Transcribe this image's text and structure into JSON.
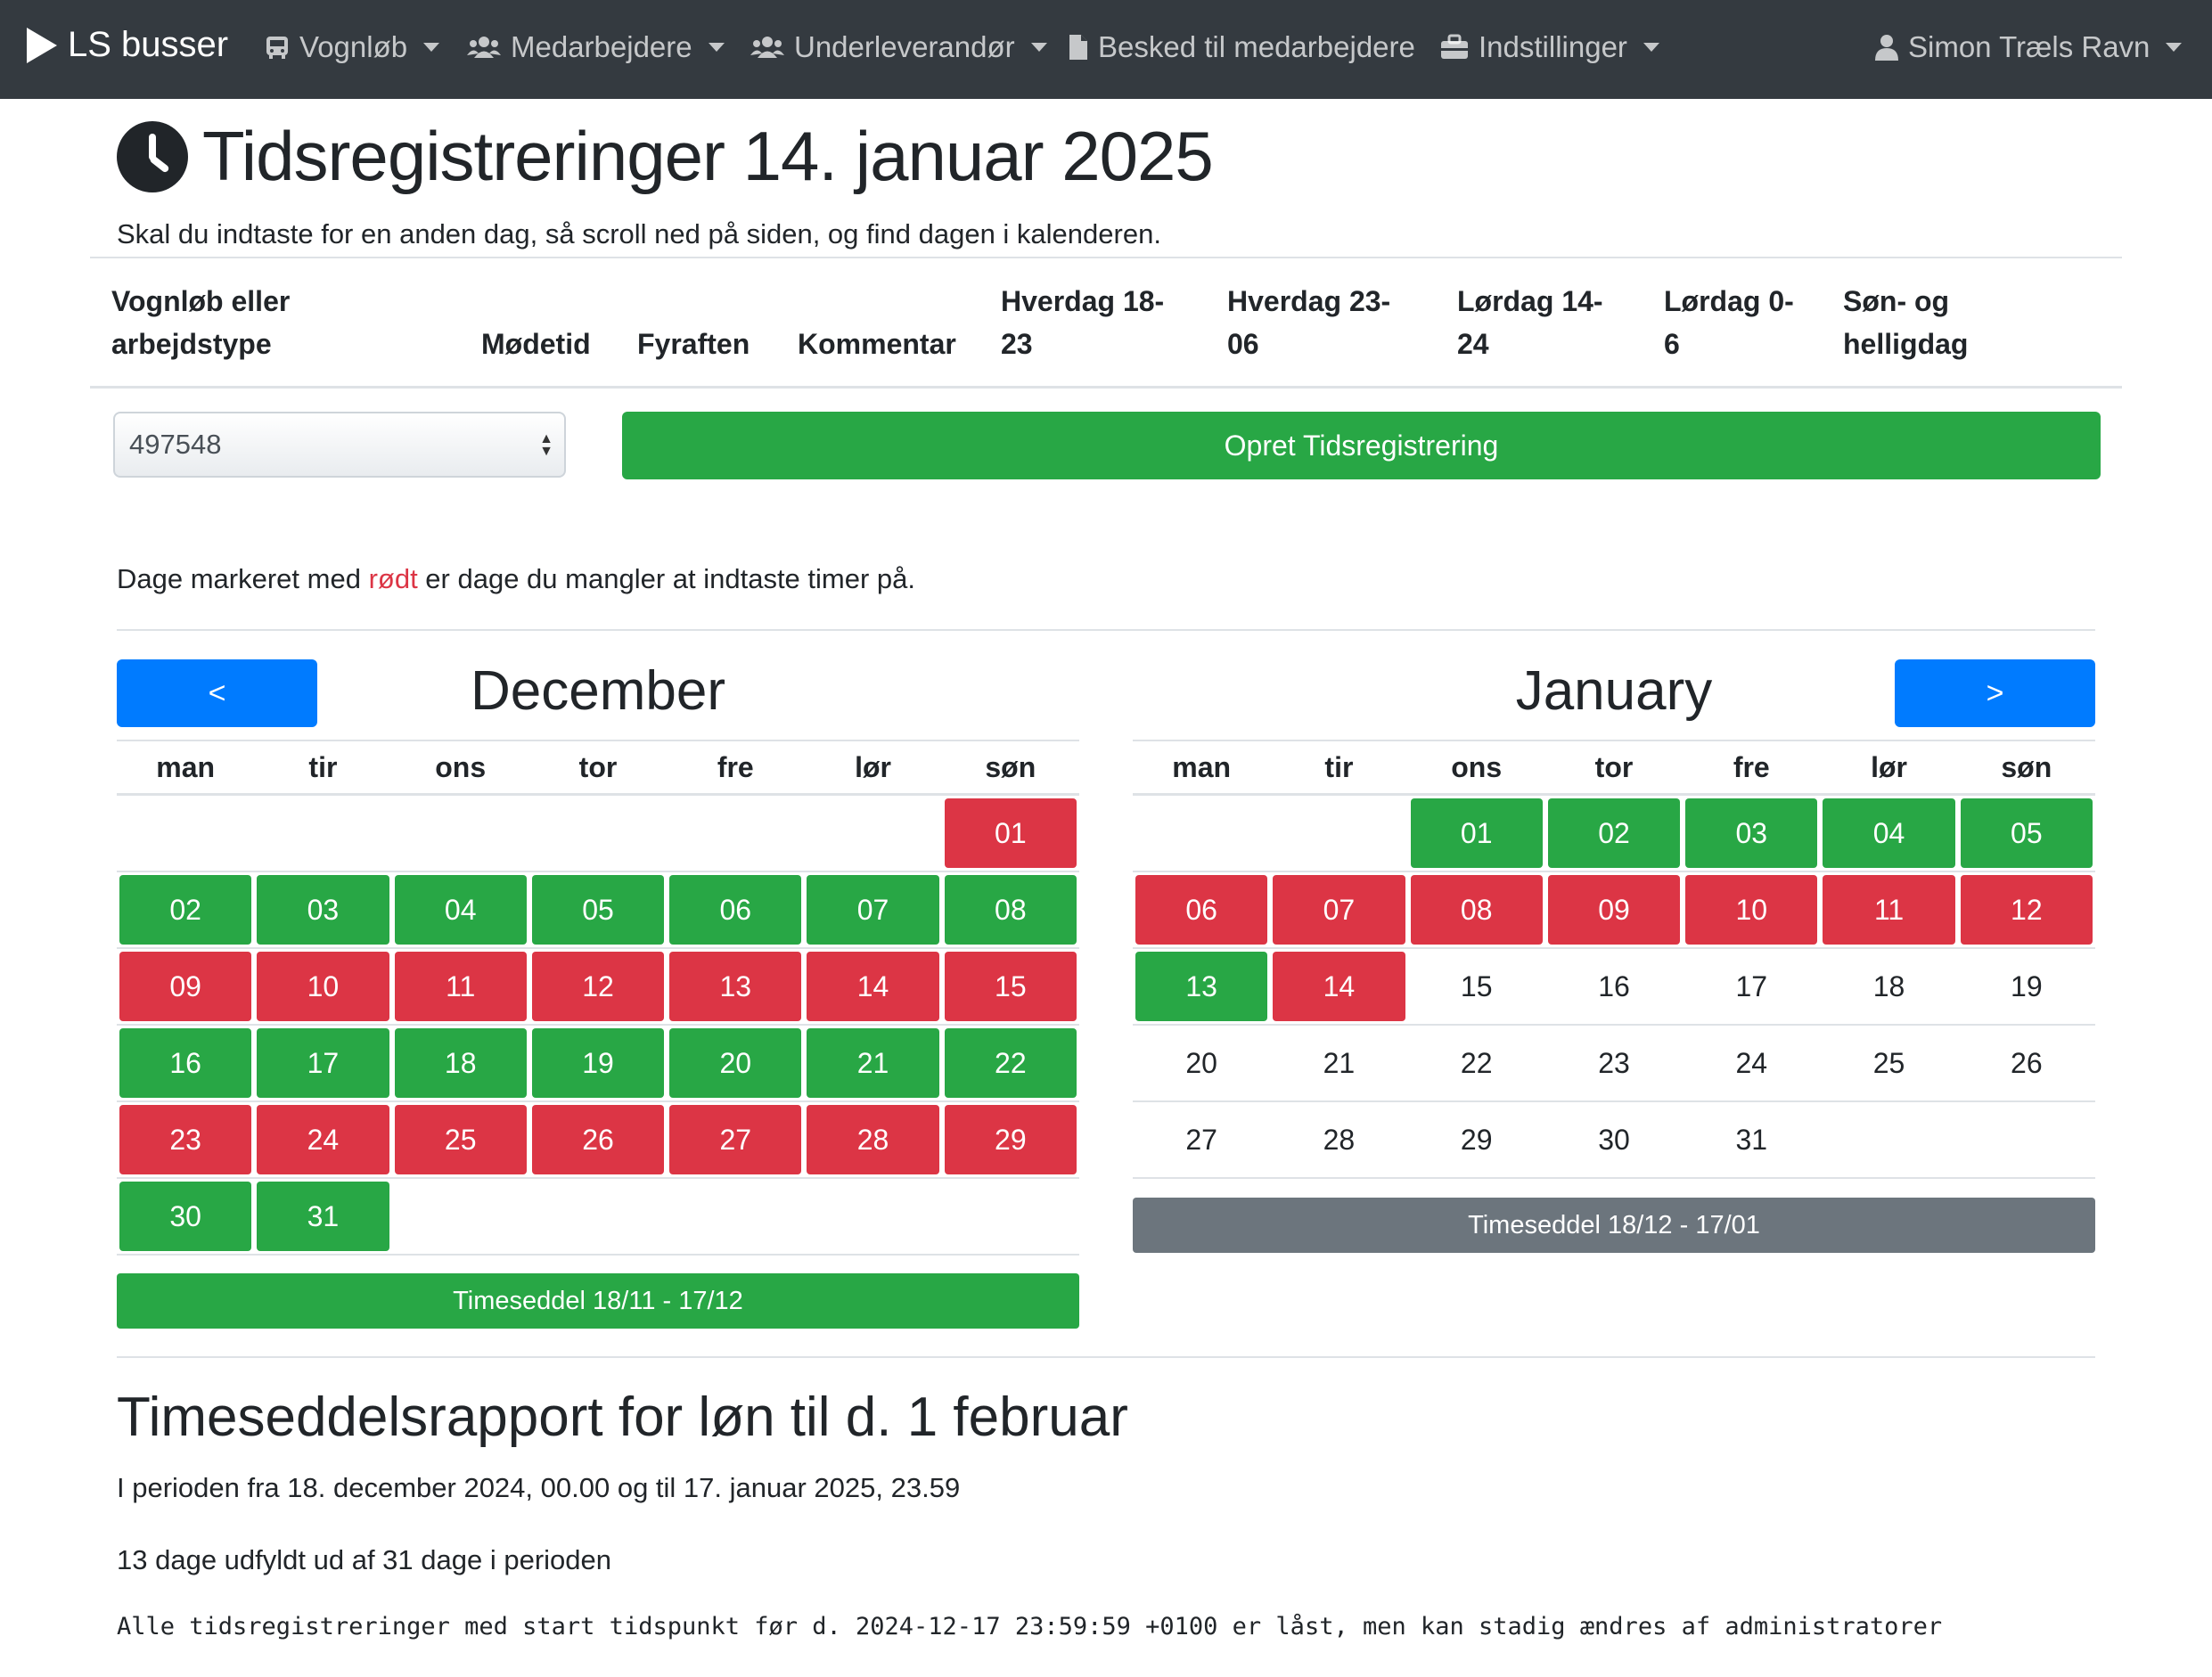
{
  "navbar": {
    "brand": "LS busser",
    "items": [
      {
        "label": "Vognløb",
        "icon": "bus-icon",
        "dropdown": true
      },
      {
        "label": "Medarbejdere",
        "icon": "users-icon",
        "dropdown": true
      },
      {
        "label": "Underleverandør",
        "icon": "users-icon",
        "dropdown": true
      },
      {
        "label": "Besked til medarbejdere",
        "icon": "file-icon",
        "dropdown": false
      },
      {
        "label": "Indstillinger",
        "icon": "toolbox-icon",
        "dropdown": true
      }
    ],
    "user": {
      "label": "Simon Træls Ravn",
      "icon": "user-icon"
    }
  },
  "page": {
    "title": "Tidsregistreringer 14. januar 2025",
    "subtitle": "Skal du indtaste for en anden dag, så scroll ned på siden, og find dagen i kalenderen."
  },
  "table_headers": {
    "vognloeb_line1": "Vognløb eller",
    "vognloeb_line2": "arbejdstype",
    "modetid": "Mødetid",
    "fyraften": "Fyraften",
    "kommentar": "Kommentar",
    "hverdag1_line1": "Hverdag 18-",
    "hverdag1_line2": "23",
    "hverdag2_line1": "Hverdag 23-",
    "hverdag2_line2": "06",
    "lordag1_line1": "Lørdag 14-",
    "lordag1_line2": "24",
    "lordag2_line1": "Lørdag 0-",
    "lordag2_line2": "6",
    "son_line1": "Søn- og",
    "son_line2": "helligdag"
  },
  "form": {
    "select_value": "497548",
    "create_button": "Opret Tidsregistrering"
  },
  "info": {
    "prefix": "Dage markeret med ",
    "red_word": "rødt",
    "suffix": " er dage du mangler at indtaste timer på."
  },
  "calendar": {
    "prev_label": "<",
    "next_label": ">",
    "weekdays": [
      "man",
      "tir",
      "ons",
      "tor",
      "fre",
      "lør",
      "søn"
    ],
    "months": [
      {
        "name": "December",
        "weeks": [
          [
            null,
            null,
            null,
            null,
            null,
            null,
            {
              "d": "01",
              "s": "red"
            }
          ],
          [
            {
              "d": "02",
              "s": "green"
            },
            {
              "d": "03",
              "s": "green"
            },
            {
              "d": "04",
              "s": "green"
            },
            {
              "d": "05",
              "s": "green"
            },
            {
              "d": "06",
              "s": "green"
            },
            {
              "d": "07",
              "s": "green"
            },
            {
              "d": "08",
              "s": "green"
            }
          ],
          [
            {
              "d": "09",
              "s": "red"
            },
            {
              "d": "10",
              "s": "red"
            },
            {
              "d": "11",
              "s": "red"
            },
            {
              "d": "12",
              "s": "red"
            },
            {
              "d": "13",
              "s": "red"
            },
            {
              "d": "14",
              "s": "red"
            },
            {
              "d": "15",
              "s": "red"
            }
          ],
          [
            {
              "d": "16",
              "s": "green"
            },
            {
              "d": "17",
              "s": "green"
            },
            {
              "d": "18",
              "s": "green"
            },
            {
              "d": "19",
              "s": "green"
            },
            {
              "d": "20",
              "s": "green"
            },
            {
              "d": "21",
              "s": "green"
            },
            {
              "d": "22",
              "s": "green"
            }
          ],
          [
            {
              "d": "23",
              "s": "red"
            },
            {
              "d": "24",
              "s": "red"
            },
            {
              "d": "25",
              "s": "red"
            },
            {
              "d": "26",
              "s": "red"
            },
            {
              "d": "27",
              "s": "red"
            },
            {
              "d": "28",
              "s": "red"
            },
            {
              "d": "29",
              "s": "red"
            }
          ],
          [
            {
              "d": "30",
              "s": "green"
            },
            {
              "d": "31",
              "s": "green"
            },
            null,
            null,
            null,
            null,
            null
          ]
        ],
        "timesheet": "Timeseddel 18/11 - 17/12",
        "timesheet_status": "green"
      },
      {
        "name": "January",
        "weeks": [
          [
            null,
            null,
            {
              "d": "01",
              "s": "green"
            },
            {
              "d": "02",
              "s": "green"
            },
            {
              "d": "03",
              "s": "green"
            },
            {
              "d": "04",
              "s": "green"
            },
            {
              "d": "05",
              "s": "green"
            }
          ],
          [
            {
              "d": "06",
              "s": "red"
            },
            {
              "d": "07",
              "s": "red"
            },
            {
              "d": "08",
              "s": "red"
            },
            {
              "d": "09",
              "s": "red"
            },
            {
              "d": "10",
              "s": "red"
            },
            {
              "d": "11",
              "s": "red"
            },
            {
              "d": "12",
              "s": "red"
            }
          ],
          [
            {
              "d": "13",
              "s": "green"
            },
            {
              "d": "14",
              "s": "red"
            },
            {
              "d": "15",
              "s": "none"
            },
            {
              "d": "16",
              "s": "none"
            },
            {
              "d": "17",
              "s": "none"
            },
            {
              "d": "18",
              "s": "none"
            },
            {
              "d": "19",
              "s": "none"
            }
          ],
          [
            {
              "d": "20",
              "s": "none"
            },
            {
              "d": "21",
              "s": "none"
            },
            {
              "d": "22",
              "s": "none"
            },
            {
              "d": "23",
              "s": "none"
            },
            {
              "d": "24",
              "s": "none"
            },
            {
              "d": "25",
              "s": "none"
            },
            {
              "d": "26",
              "s": "none"
            }
          ],
          [
            {
              "d": "27",
              "s": "none"
            },
            {
              "d": "28",
              "s": "none"
            },
            {
              "d": "29",
              "s": "none"
            },
            {
              "d": "30",
              "s": "none"
            },
            {
              "d": "31",
              "s": "none"
            },
            null,
            null
          ]
        ],
        "timesheet": "Timeseddel 18/12 - 17/01",
        "timesheet_status": "gray"
      }
    ]
  },
  "report": {
    "title": "Timeseddelsrapport for løn til d. 1 februar",
    "period": "I perioden fra 18. december 2024, 00.00 og til 17. januar 2025, 23.59",
    "filled": "13 dage udfyldt ud af 31 dage i perioden",
    "lock_note": "Alle tidsregistreringer med start tidspunkt før d. 2024-12-17 23:59:59 +0100 er låst, men kan stadig ændres af administratorer"
  },
  "colors": {
    "navbar": "#343a40",
    "green": "#28a745",
    "red": "#dc3545",
    "blue": "#007bff",
    "gray": "#6c757d"
  }
}
